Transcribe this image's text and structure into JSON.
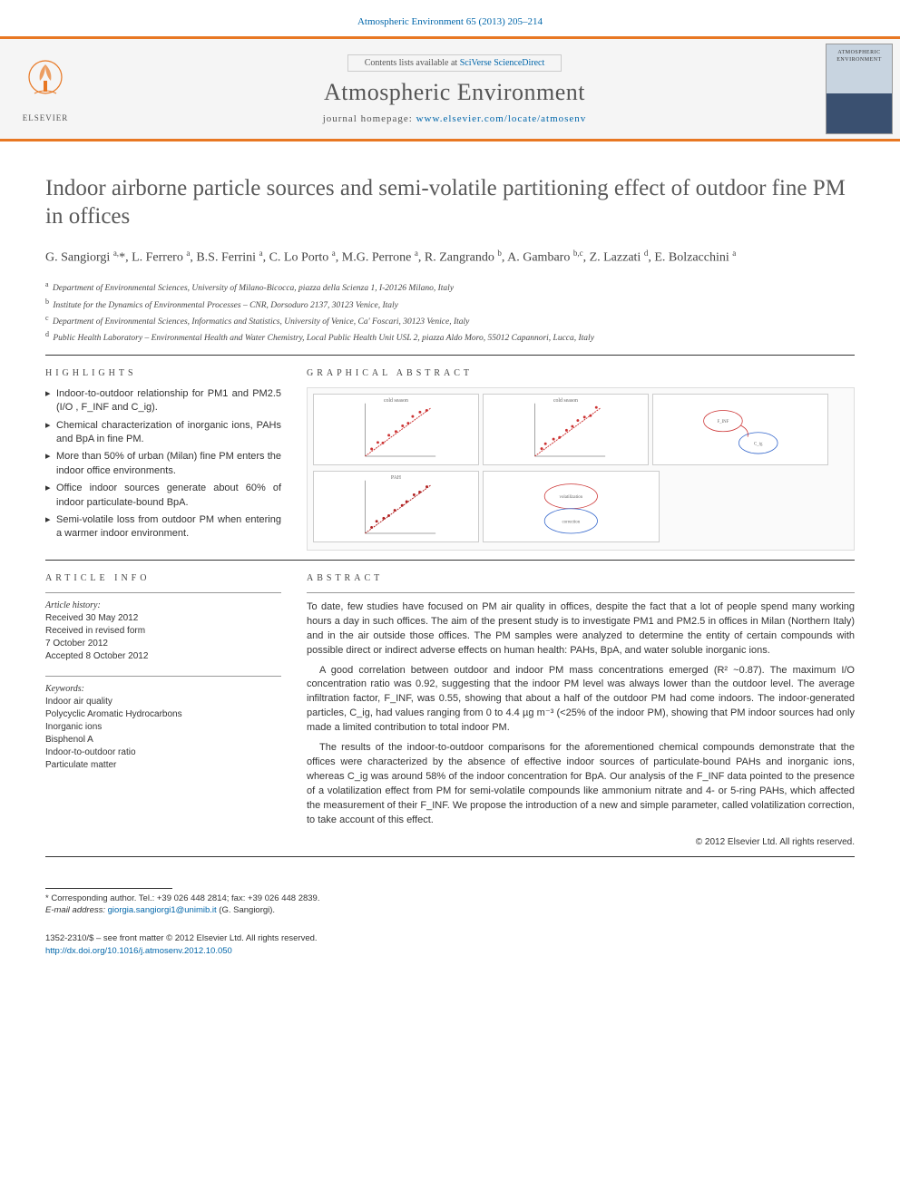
{
  "citation": "Atmospheric Environment 65 (2013) 205–214",
  "header": {
    "sciverse_prefix": "Contents lists available at ",
    "sciverse_link": "SciVerse ScienceDirect",
    "journal_name": "Atmospheric Environment",
    "homepage_prefix": "journal homepage: ",
    "homepage_link": "www.elsevier.com/locate/atmosenv",
    "elsevier_label": "ELSEVIER",
    "cover_line1": "ATMOSPHERIC",
    "cover_line2": "ENVIRONMENT"
  },
  "title": "Indoor airborne particle sources and semi-volatile partitioning effect of outdoor fine PM in offices",
  "authors_html": "G. Sangiorgi <sup>a,</sup>*, L. Ferrero <sup>a</sup>, B.S. Ferrini <sup>a</sup>, C. Lo Porto <sup>a</sup>, M.G. Perrone <sup>a</sup>, R. Zangrando <sup>b</sup>, A. Gambaro <sup>b,c</sup>, Z. Lazzati <sup>d</sup>, E. Bolzacchini <sup>a</sup>",
  "affiliations": [
    {
      "sup": "a",
      "text": "Department of Environmental Sciences, University of Milano-Bicocca, piazza della Scienza 1, I-20126 Milano, Italy"
    },
    {
      "sup": "b",
      "text": "Institute for the Dynamics of Environmental Processes – CNR, Dorsoduro 2137, 30123 Venice, Italy"
    },
    {
      "sup": "c",
      "text": "Department of Environmental Sciences, Informatics and Statistics, University of Venice, Ca' Foscari, 30123 Venice, Italy"
    },
    {
      "sup": "d",
      "text": "Public Health Laboratory – Environmental Health and Water Chemistry, Local Public Health Unit USL 2, piazza Aldo Moro, 55012 Capannori, Lucca, Italy"
    }
  ],
  "labels": {
    "highlights": "HIGHLIGHTS",
    "graphical_abstract": "GRAPHICAL ABSTRACT",
    "article_info": "ARTICLE INFO",
    "abstract": "ABSTRACT",
    "article_history": "Article history:",
    "keywords": "Keywords:"
  },
  "highlights": [
    "Indoor-to-outdoor relationship for PM1 and PM2.5 (I/O , F_INF and C_ig).",
    "Chemical characterization of inorganic ions, PAHs and BpA in fine PM.",
    "More than 50% of urban (Milan) fine PM enters the indoor office environments.",
    "Office indoor sources generate about 60% of indoor particulate-bound BpA.",
    "Semi-volatile loss from outdoor PM when entering a warmer indoor environment."
  ],
  "article_history": [
    "Received 30 May 2012",
    "Received in revised form",
    "7 October 2012",
    "Accepted 8 October 2012"
  ],
  "keywords": [
    "Indoor air quality",
    "Polycyclic Aromatic Hydrocarbons",
    "Inorganic ions",
    "Bisphenol A",
    "Indoor-to-outdoor ratio",
    "Particulate matter"
  ],
  "abstract": {
    "p1": "To date, few studies have focused on PM air quality in offices, despite the fact that a lot of people spend many working hours a day in such offices. The aim of the present study is to investigate PM1 and PM2.5 in offices in Milan (Northern Italy) and in the air outside those offices. The PM samples were analyzed to determine the entity of certain compounds with possible direct or indirect adverse effects on human health: PAHs, BpA, and water soluble inorganic ions.",
    "p2": "A good correlation between outdoor and indoor PM mass concentrations emerged (R² ~0.87). The maximum I/O concentration ratio was 0.92, suggesting that the indoor PM level was always lower than the outdoor level. The average infiltration factor, F_INF, was 0.55, showing that about a half of the outdoor PM had come indoors. The indoor-generated particles, C_ig, had values ranging from 0 to 4.4 µg m⁻³ (<25% of the indoor PM), showing that PM indoor sources had only made a limited contribution to total indoor PM.",
    "p3": "The results of the indoor-to-outdoor comparisons for the aforementioned chemical compounds demonstrate that the offices were characterized by the absence of effective indoor sources of particulate-bound PAHs and inorganic ions, whereas C_ig was around 58% of the indoor concentration for BpA. Our analysis of the F_INF data pointed to the presence of a volatilization effect from PM for semi-volatile compounds like ammonium nitrate and 4- or 5-ring PAHs, which affected the measurement of their F_INF. We propose the introduction of a new and simple parameter, called volatilization correction, to take account of this effect."
  },
  "copyright_line": "© 2012 Elsevier Ltd. All rights reserved.",
  "footer": {
    "corr_label": "* Corresponding author. Tel.: +39 026 448 2814; fax: +39 026 448 2839.",
    "email_label": "E-mail address:",
    "email": "giorgia.sangiorgi1@unimib.it",
    "email_paren": "(G. Sangiorgi).",
    "issn_line": "1352-2310/$ – see front matter © 2012 Elsevier Ltd. All rights reserved.",
    "doi": "http://dx.doi.org/10.1016/j.atmosenv.2012.10.050"
  },
  "graphical_abstract": {
    "panels": [
      {
        "w": "31%",
        "h": "48%",
        "type": "scatter",
        "color": "#cc3333",
        "title": "cold season",
        "axis_color": "#888"
      },
      {
        "w": "31%",
        "h": "48%",
        "type": "scatter",
        "color": "#cc3333",
        "title": "cold season",
        "axis_color": "#888"
      },
      {
        "w": "33%",
        "h": "48%",
        "type": "annot",
        "border": "#d0d0d0"
      },
      {
        "w": "31%",
        "h": "48%",
        "type": "scatter",
        "color": "#b02020",
        "title": "PAH",
        "axis_color": "#888"
      },
      {
        "w": "33%",
        "h": "48%",
        "type": "annot2",
        "border": "#d0d0d0"
      }
    ]
  },
  "colors": {
    "orange_rule": "#e87722",
    "link_blue": "#0066aa",
    "header_bg": "#f5f5f5",
    "text": "#333333"
  }
}
